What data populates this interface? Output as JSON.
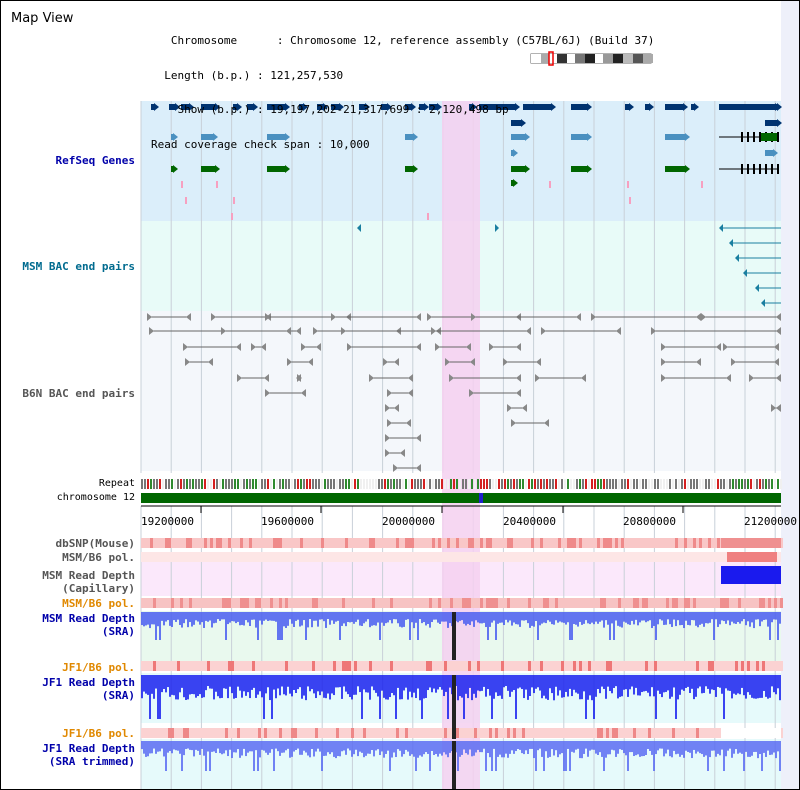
{
  "title": "Map View",
  "info": {
    "chromosome_label": "Chromosome",
    "chromosome_value": "Chromosome 12, reference assembly (C57BL/6J) (Build 37)",
    "length_label": "Length (b.p.)",
    "length_value": "121,257,530",
    "show_label": "Show (b.p.)",
    "show_value": "19,197,202-21,317,699 : 2,120,498 bp",
    "coverage_label": "Read coverage check span",
    "coverage_value": "10,000"
  },
  "tracks": {
    "refseq": "RefSeq Genes",
    "msm_bac": "MSM BAC end pairs",
    "b6n_bac": "B6N BAC end pairs",
    "repeat": "Repeat",
    "chromosome": "chromosome 12",
    "dbsnp": "dbSNP(Mouse)",
    "msm_pol_1": "MSM/B6 pol.",
    "msm_depth_cap_1": "MSM Read Depth",
    "msm_depth_cap_2": "(Capillary)",
    "msm_pol_2": "MSM/B6 pol.",
    "msm_depth_sra_1": "MSM Read Depth",
    "msm_depth_sra_2": "(SRA)",
    "jf1_pol_1": "JF1/B6 pol.",
    "jf1_depth_1": "JF1 Read Depth",
    "jf1_depth_2": "(SRA)",
    "jf1_pol_2": "JF1/B6 pol.",
    "jf1_trim_1": "JF1 Read Depth",
    "jf1_trim_2": "(SRA trimmed)"
  },
  "axis_ticks": [
    "19200000",
    "19600000",
    "20000000",
    "20400000",
    "20800000",
    "21200000"
  ],
  "colors": {
    "refseq_bg": "#dbeefa",
    "bac_bg": "#e8fbf8",
    "highlight": "#f5d0f0",
    "gene_dark": "#003370",
    "gene_mid": "#4a90c0",
    "gene_green": "#006600",
    "depth_blue": "#2020ff",
    "snp_red": "#ff9999",
    "chromosome_green": "#006600"
  }
}
